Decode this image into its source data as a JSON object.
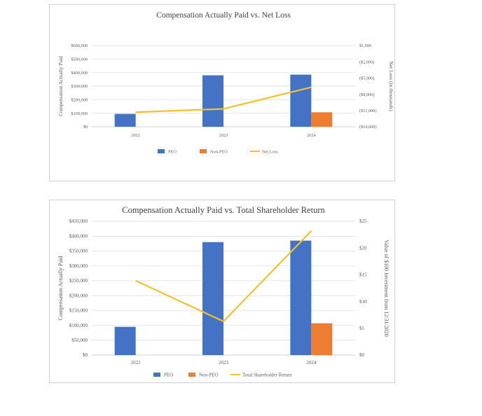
{
  "colors": {
    "peo": "#4472c4",
    "non_peo": "#ed7d31",
    "line": "#f2c12e",
    "grid": "#d9d9d9",
    "axis": "#bfbfbf",
    "text": "#595959"
  },
  "chart_data": [
    {
      "type": "bar",
      "title": "Compensation Actually Paid vs. Net Loss",
      "categories": [
        "2022",
        "2023",
        "2024"
      ],
      "ylabel": "Compensation Actually Paid",
      "y2label": "Net Loss (in thousands)",
      "ylim": [
        0,
        600000
      ],
      "y_ticks": [
        "$0",
        "$100,000",
        "$200,000",
        "$300,000",
        "$400,000",
        "$500,000",
        "$600,000"
      ],
      "y2lim": [
        -14000,
        1000
      ],
      "y2_ticks": [
        "($14,000)",
        "($11,000)",
        "($8,000)",
        "($5,000)",
        "($2,000)",
        "$1,000"
      ],
      "series": [
        {
          "name": "PEO",
          "type": "bar",
          "axis": "left",
          "values": [
            95000,
            380000,
            385000
          ]
        },
        {
          "name": "Non-PEO",
          "type": "bar",
          "axis": "left",
          "values": [
            null,
            null,
            107000
          ]
        },
        {
          "name": "Net Loss",
          "type": "line",
          "axis": "right",
          "values": [
            -11300,
            -10700,
            -6700
          ]
        }
      ],
      "legend": "bottom"
    },
    {
      "type": "bar",
      "title": "Compensation Actually Paid vs. Total Shareholder Return",
      "categories": [
        "2022",
        "2023",
        "2024"
      ],
      "ylabel": "Compensation Actually Paid",
      "y2label": "Value of $100 Investment from 12/31/2020",
      "ylim": [
        0,
        450000
      ],
      "y_ticks": [
        "$0",
        "$50,000",
        "$100,000",
        "$150,000",
        "$200,000",
        "$250,000",
        "$300,000",
        "$350,000",
        "$400,000",
        "$450,000"
      ],
      "y2lim": [
        0,
        25
      ],
      "y2_ticks": [
        "$0",
        "$5",
        "$10",
        "$15",
        "$20",
        "$25"
      ],
      "series": [
        {
          "name": "PEO",
          "type": "bar",
          "axis": "left",
          "values": [
            95000,
            380000,
            385000
          ]
        },
        {
          "name": "Non-PEO",
          "type": "bar",
          "axis": "left",
          "values": [
            null,
            null,
            107000
          ]
        },
        {
          "name": "Total Shareholder Return",
          "type": "line",
          "axis": "right",
          "values": [
            13.9,
            6.3,
            23.2
          ]
        }
      ],
      "legend": "bottom"
    }
  ]
}
